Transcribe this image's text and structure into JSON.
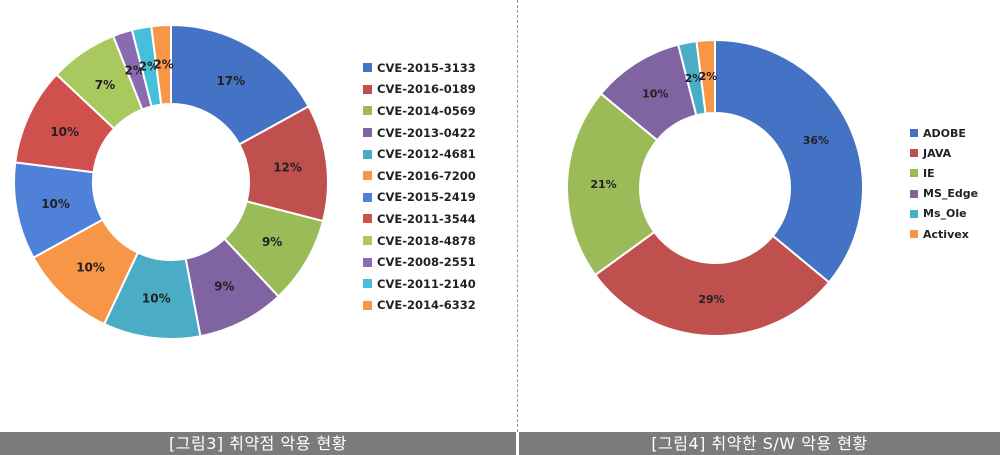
{
  "captions": {
    "left": "[그림3] 취약점 악용 현황",
    "right": "[그림4] 취약한 S/W 악용 현황"
  },
  "chart_data": [
    {
      "type": "pie",
      "donut": true,
      "legend_position": "right",
      "categories": [
        "CVE-2015-3133",
        "CVE-2016-0189",
        "CVE-2014-0569",
        "CVE-2013-0422",
        "CVE-2012-4681",
        "CVE-2016-7200",
        "CVE-2015-2419",
        "CVE-2011-3544",
        "CVE-2018-4878",
        "CVE-2008-2551",
        "CVE-2011-2140",
        "CVE-2014-6332"
      ],
      "values": [
        17,
        12,
        9,
        9,
        10,
        10,
        10,
        10,
        7,
        2,
        2,
        2
      ],
      "labels": [
        "17%",
        "12%",
        "9%",
        "9%",
        "10%",
        "10%",
        "10%",
        "10%",
        "7%",
        "2%",
        "2%",
        "2%"
      ],
      "colors": [
        "#4472C4",
        "#C0504D",
        "#9BBB59",
        "#8064A2",
        "#4BACC6",
        "#F79646",
        "#4F81D8",
        "#D0504D",
        "#A9C95F",
        "#8A6AB0",
        "#46C0DA",
        "#F79646"
      ]
    },
    {
      "type": "pie",
      "donut": true,
      "legend_position": "right",
      "categories": [
        "ADOBE",
        "JAVA",
        "IE",
        "MS_Edge",
        "Ms_Ole",
        "Activex"
      ],
      "values": [
        36,
        29,
        21,
        10,
        2,
        2
      ],
      "labels": [
        "36%",
        "29%",
        "21%",
        "10%",
        "2%",
        "2%"
      ],
      "colors": [
        "#4472C4",
        "#C0504D",
        "#9BBB59",
        "#8064A2",
        "#4BACC6",
        "#F79646"
      ]
    }
  ]
}
